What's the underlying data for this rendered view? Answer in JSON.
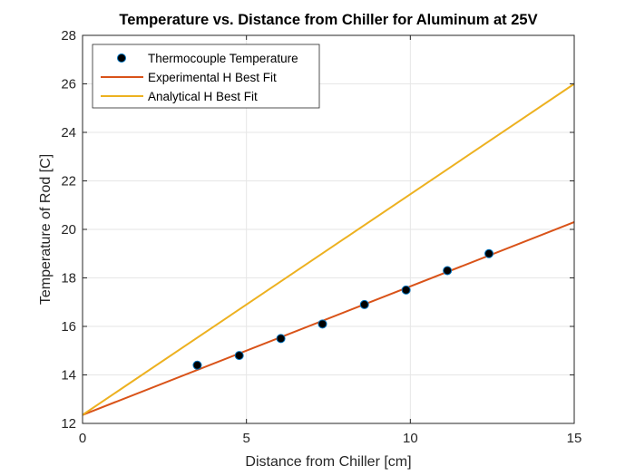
{
  "chart_data": {
    "type": "scatter",
    "title": "Temperature vs. Distance from Chiller for Aluminum at 25V",
    "xlabel": "Distance from Chiller [cm]",
    "ylabel": "Temperature of Rod [C]",
    "xlim": [
      0,
      15
    ],
    "ylim": [
      12,
      28
    ],
    "xticks": [
      0,
      5,
      10,
      15
    ],
    "yticks": [
      12,
      14,
      16,
      18,
      20,
      22,
      24,
      26,
      28
    ],
    "xtick_labels": [
      "0",
      "5",
      "10",
      "15"
    ],
    "ytick_labels": [
      "12",
      "14",
      "16",
      "18",
      "20",
      "22",
      "24",
      "26",
      "28"
    ],
    "grid": true,
    "legend_position": "top-left",
    "series": [
      {
        "name": "Thermocouple Temperature",
        "kind": "markers",
        "color": "#000000",
        "edge_color": "#0072BD",
        "x": [
          3.5,
          4.78,
          6.05,
          7.32,
          8.6,
          9.87,
          11.13,
          12.4
        ],
        "y": [
          14.4,
          14.8,
          15.5,
          16.1,
          16.9,
          17.5,
          18.3,
          19.0
        ]
      },
      {
        "name": "Experimental H Best Fit",
        "kind": "line",
        "color": "#D95319",
        "x": [
          0,
          15
        ],
        "y": [
          12.35,
          20.3
        ]
      },
      {
        "name": "Analytical H Best Fit",
        "kind": "line",
        "color": "#EDB120",
        "x": [
          0,
          15
        ],
        "y": [
          12.35,
          26.0
        ]
      }
    ]
  }
}
